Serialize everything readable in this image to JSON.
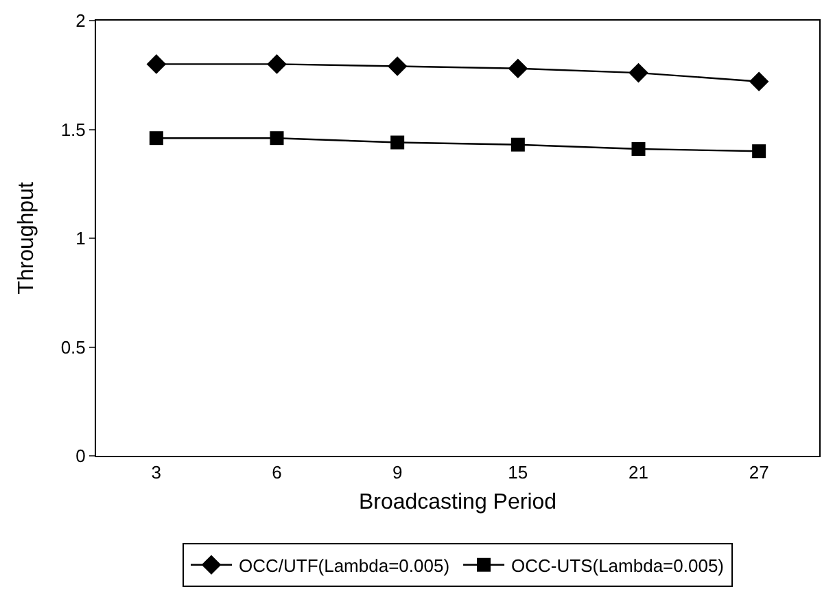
{
  "chart_data": {
    "type": "line",
    "xlabel": "Broadcasting Period",
    "ylabel": "Throughput",
    "categories": [
      "3",
      "6",
      "9",
      "15",
      "21",
      "27"
    ],
    "ylim": [
      0,
      2
    ],
    "yticks": [
      0,
      0.5,
      1,
      1.5,
      2
    ],
    "legend": "bottom",
    "line_style": "solid",
    "series": [
      {
        "name": "OCC/UTF(Lambda=0.005)",
        "color": "#000000",
        "marker": "diamond",
        "values": [
          1.8,
          1.8,
          1.79,
          1.78,
          1.76,
          1.72
        ]
      },
      {
        "name": "OCC-UTS(Lambda=0.005)",
        "color": "#000000",
        "marker": "square",
        "values": [
          1.46,
          1.46,
          1.44,
          1.43,
          1.41,
          1.4
        ]
      }
    ]
  }
}
